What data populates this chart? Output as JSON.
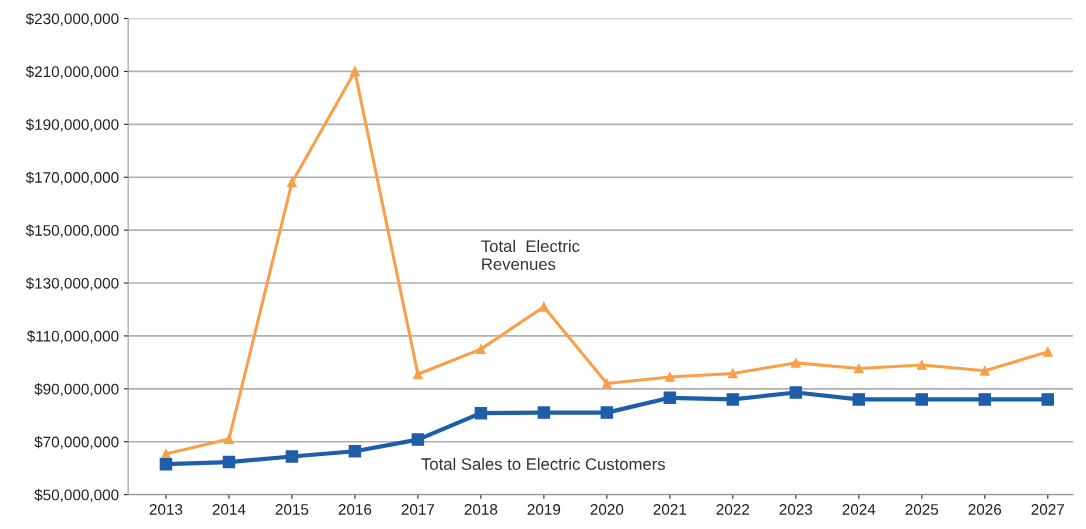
{
  "chart_data": {
    "type": "line",
    "categories": [
      "2013",
      "2014",
      "2015",
      "2016",
      "2017",
      "2018",
      "2019",
      "2020",
      "2021",
      "2022",
      "2023",
      "2024",
      "2025",
      "2026",
      "2027"
    ],
    "series": [
      {
        "name": "Total  Electric\nRevenues",
        "color": "#f7a04b",
        "marker": "triangle",
        "values": [
          65400000,
          71000000,
          168000000,
          210000000,
          95500000,
          105000000,
          121000000,
          92000000,
          94500000,
          95800000,
          99800000,
          97700000,
          99000000,
          96800000,
          104000000
        ]
      },
      {
        "name": "Total Sales to Electric Customers",
        "color": "#1f5ea8",
        "marker": "square",
        "values": [
          61500000,
          62300000,
          64400000,
          66400000,
          70800000,
          80800000,
          81000000,
          81000000,
          86600000,
          86000000,
          88600000,
          86000000,
          86000000,
          86000000,
          86000000
        ]
      }
    ],
    "ylim": [
      50000000,
      230000000
    ],
    "yticks": [
      {
        "value": 50000000,
        "label": "$50,000,000"
      },
      {
        "value": 70000000,
        "label": "$70,000,000"
      },
      {
        "value": 90000000,
        "label": "$90,000,000"
      },
      {
        "value": 110000000,
        "label": "$110,000,000"
      },
      {
        "value": 130000000,
        "label": "$130,000,000"
      },
      {
        "value": 150000000,
        "label": "$150,000,000"
      },
      {
        "value": 170000000,
        "label": "$170,000,000"
      },
      {
        "value": 190000000,
        "label": "$190,000,000"
      },
      {
        "value": 210000000,
        "label": "$210,000,000"
      },
      {
        "value": 230000000,
        "label": "$230,000,000"
      }
    ],
    "grid": "y",
    "legend": false,
    "line_style": "solid"
  }
}
